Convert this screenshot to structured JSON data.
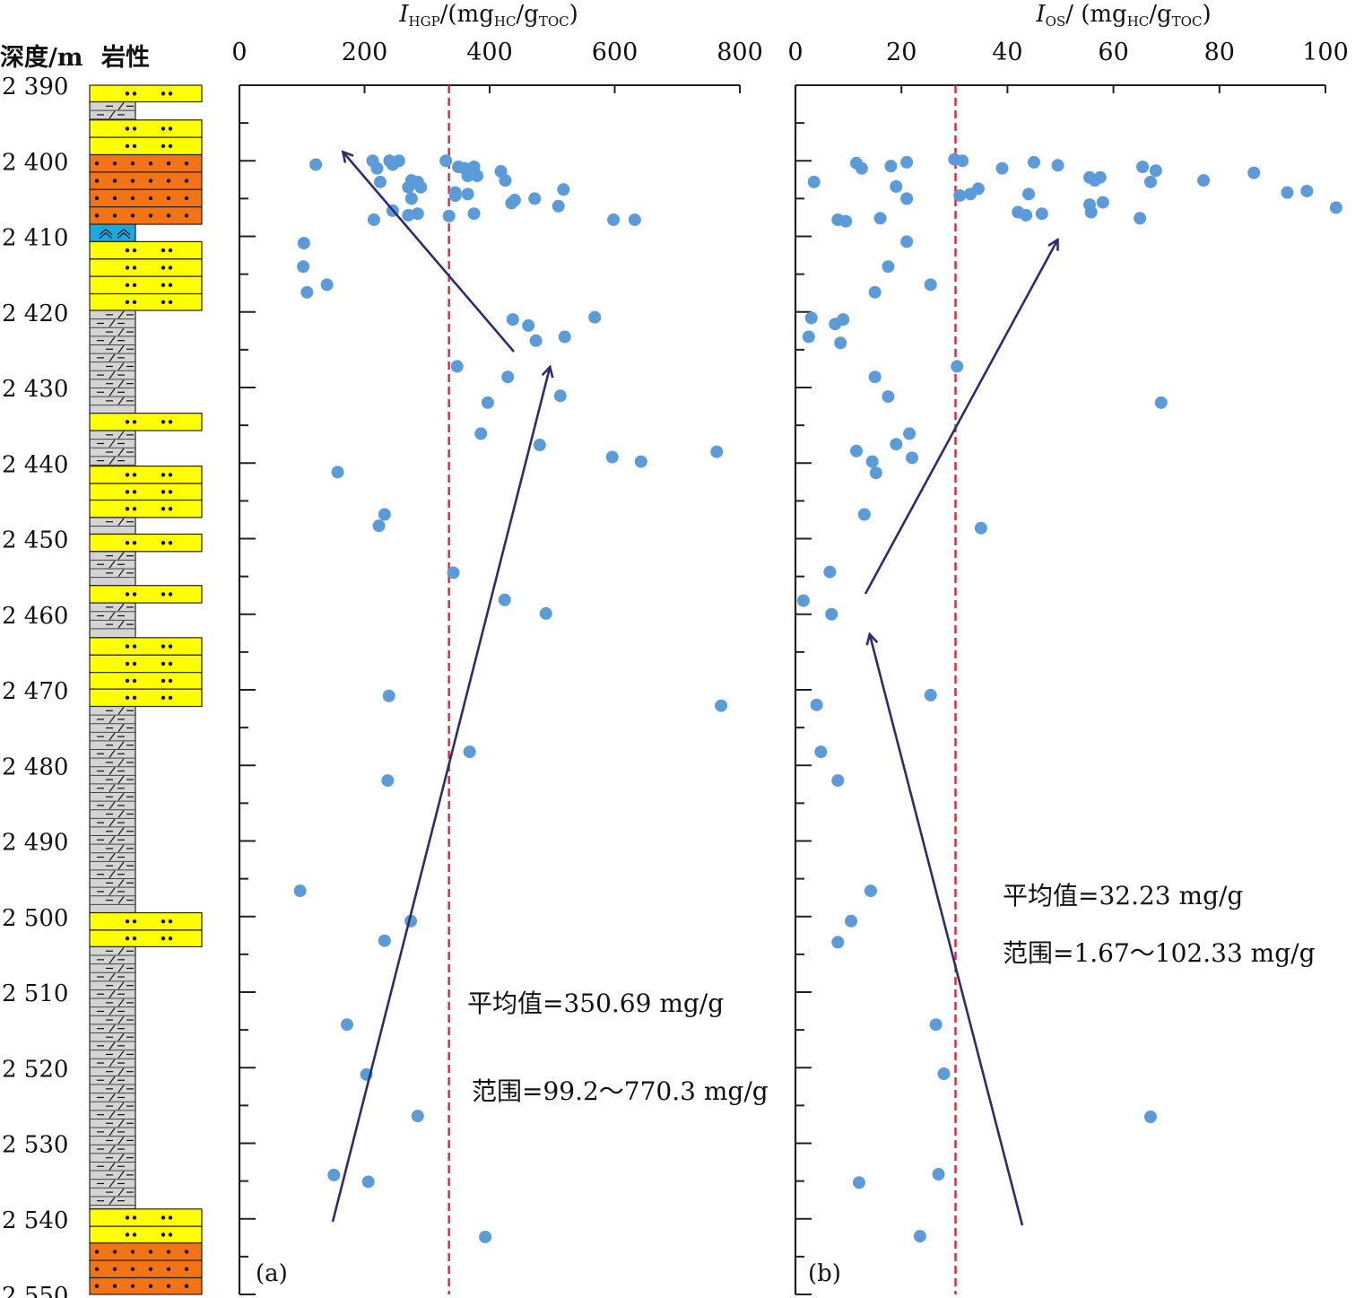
{
  "header": {
    "depth_label": "深度/m",
    "lithology_label": "岩性"
  },
  "colors": {
    "point": "#5b9bd9",
    "mean_line": "#e3223a",
    "arrow": "#2b2e6e",
    "sandstone": "#ffff00",
    "conglomerate": "#f47415",
    "mudstone": "#d4d4d4",
    "limestone": "#1ea8e0"
  },
  "lithology": [
    {
      "top": 2390,
      "bottom": 2392.2,
      "type": "sandstone"
    },
    {
      "top": 2392.2,
      "bottom": 2394.6,
      "type": "mudstone"
    },
    {
      "top": 2394.6,
      "bottom": 2396.9,
      "type": "sandstone"
    },
    {
      "top": 2396.9,
      "bottom": 2399.2,
      "type": "sandstone"
    },
    {
      "top": 2399.2,
      "bottom": 2401.5,
      "type": "conglomerate"
    },
    {
      "top": 2401.5,
      "bottom": 2403.8,
      "type": "conglomerate"
    },
    {
      "top": 2403.8,
      "bottom": 2406.1,
      "type": "conglomerate"
    },
    {
      "top": 2406.1,
      "bottom": 2408.4,
      "type": "conglomerate"
    },
    {
      "top": 2408.4,
      "bottom": 2410.7,
      "type": "limestone"
    },
    {
      "top": 2410.7,
      "bottom": 2413.0,
      "type": "sandstone"
    },
    {
      "top": 2413.0,
      "bottom": 2415.3,
      "type": "sandstone"
    },
    {
      "top": 2415.3,
      "bottom": 2417.6,
      "type": "sandstone"
    },
    {
      "top": 2417.6,
      "bottom": 2419.8,
      "type": "sandstone"
    },
    {
      "top": 2419.8,
      "bottom": 2433.4,
      "type": "mudstone"
    },
    {
      "top": 2433.4,
      "bottom": 2435.7,
      "type": "sandstone"
    },
    {
      "top": 2435.7,
      "bottom": 2440.4,
      "type": "mudstone"
    },
    {
      "top": 2440.4,
      "bottom": 2442.7,
      "type": "sandstone"
    },
    {
      "top": 2442.7,
      "bottom": 2444.9,
      "type": "sandstone"
    },
    {
      "top": 2444.9,
      "bottom": 2447.2,
      "type": "sandstone"
    },
    {
      "top": 2447.2,
      "bottom": 2449.4,
      "type": "mudstone"
    },
    {
      "top": 2449.4,
      "bottom": 2451.7,
      "type": "sandstone"
    },
    {
      "top": 2451.7,
      "bottom": 2456.2,
      "type": "mudstone"
    },
    {
      "top": 2456.2,
      "bottom": 2458.5,
      "type": "sandstone"
    },
    {
      "top": 2458.5,
      "bottom": 2463.1,
      "type": "mudstone"
    },
    {
      "top": 2463.1,
      "bottom": 2465.4,
      "type": "sandstone"
    },
    {
      "top": 2465.4,
      "bottom": 2467.7,
      "type": "sandstone"
    },
    {
      "top": 2467.7,
      "bottom": 2469.9,
      "type": "sandstone"
    },
    {
      "top": 2469.9,
      "bottom": 2472.2,
      "type": "sandstone"
    },
    {
      "top": 2472.2,
      "bottom": 2499.5,
      "type": "mudstone"
    },
    {
      "top": 2499.5,
      "bottom": 2501.8,
      "type": "sandstone"
    },
    {
      "top": 2501.8,
      "bottom": 2504.0,
      "type": "sandstone"
    },
    {
      "top": 2504.0,
      "bottom": 2538.7,
      "type": "mudstone"
    },
    {
      "top": 2538.7,
      "bottom": 2541.0,
      "type": "sandstone"
    },
    {
      "top": 2541.0,
      "bottom": 2543.2,
      "type": "sandstone"
    },
    {
      "top": 2543.2,
      "bottom": 2545.5,
      "type": "conglomerate"
    },
    {
      "top": 2545.5,
      "bottom": 2547.8,
      "type": "conglomerate"
    },
    {
      "top": 2547.8,
      "bottom": 2550,
      "type": "conglomerate"
    }
  ],
  "chart_data": [
    {
      "type": "scatter",
      "panel_label": "(a)",
      "xlabel": "I_HGP/(mg_HC/g_TOC)",
      "xlabel_parts": {
        "main": "I",
        "sub1": "HGP",
        "mid": "/(mg",
        "sub2": "HC",
        "mid2": "/g",
        "sub3": "TOC",
        "end": ")"
      },
      "xlim": [
        0,
        800
      ],
      "xticks": [
        0,
        200,
        400,
        600,
        800
      ],
      "ylim": [
        2390,
        2550
      ],
      "yticks": [
        2390,
        2400,
        2410,
        2420,
        2430,
        2440,
        2450,
        2460,
        2470,
        2480,
        2490,
        2500,
        2510,
        2520,
        2530,
        2540,
        2550
      ],
      "ytick_labels": [
        "2 390",
        "2 400",
        "2 410",
        "2 420",
        "2 430",
        "2 440",
        "2 450",
        "2 460",
        "2 470",
        "2 480",
        "2 490",
        "2 500",
        "2 510",
        "2 520",
        "2 530",
        "2 540",
        "2 550"
      ],
      "mean_line_x": 335,
      "annotations": [
        "平均值=350.69 mg/g",
        "范围=99.2～770.3 mg/g"
      ],
      "points": [
        [
          122,
          2400.5
        ],
        [
          213,
          2400
        ],
        [
          220,
          2401
        ],
        [
          240,
          2400
        ],
        [
          245,
          2400.5
        ],
        [
          255,
          2400
        ],
        [
          225,
          2402.8
        ],
        [
          270,
          2403.5
        ],
        [
          275,
          2402.6
        ],
        [
          285,
          2402.8
        ],
        [
          290,
          2403.5
        ],
        [
          275,
          2405
        ],
        [
          245,
          2406.6
        ],
        [
          285,
          2407
        ],
        [
          270,
          2407.2
        ],
        [
          335,
          2407.3
        ],
        [
          215,
          2407.8
        ],
        [
          330,
          2400
        ],
        [
          350,
          2400.8
        ],
        [
          360,
          2401
        ],
        [
          365,
          2402
        ],
        [
          375,
          2400.8
        ],
        [
          380,
          2402
        ],
        [
          345,
          2404.2
        ],
        [
          345,
          2404.6
        ],
        [
          365,
          2404.4
        ],
        [
          375,
          2407
        ],
        [
          418,
          2401.4
        ],
        [
          425,
          2402.6
        ],
        [
          440,
          2405.2
        ],
        [
          435,
          2405.6
        ],
        [
          472,
          2405
        ],
        [
          510,
          2406
        ],
        [
          518,
          2403.8
        ],
        [
          598,
          2407.8
        ],
        [
          632,
          2407.8
        ],
        [
          103,
          2410.9
        ],
        [
          102,
          2414
        ],
        [
          140,
          2416.4
        ],
        [
          108,
          2417.4
        ],
        [
          437,
          2421
        ],
        [
          462,
          2421.8
        ],
        [
          568,
          2420.7
        ],
        [
          474,
          2423.8
        ],
        [
          520,
          2423.3
        ],
        [
          348,
          2427.2
        ],
        [
          429,
          2428.6
        ],
        [
          513,
          2431.1
        ],
        [
          397,
          2432
        ],
        [
          386,
          2436.1
        ],
        [
          480,
          2437.6
        ],
        [
          596,
          2439.2
        ],
        [
          642,
          2439.8
        ],
        [
          763,
          2438.5
        ],
        [
          157,
          2441.2
        ],
        [
          232,
          2446.8
        ],
        [
          223,
          2448.3
        ],
        [
          342,
          2454.5
        ],
        [
          424,
          2458.1
        ],
        [
          490,
          2459.9
        ],
        [
          239,
          2470.8
        ],
        [
          770,
          2472.1
        ],
        [
          368,
          2478.2
        ],
        [
          237,
          2482
        ],
        [
          97,
          2496.6
        ],
        [
          274,
          2500.6
        ],
        [
          232,
          2503.2
        ],
        [
          172,
          2514.3
        ],
        [
          203,
          2520.9
        ],
        [
          285,
          2526.4
        ],
        [
          151,
          2534.2
        ],
        [
          206,
          2535.1
        ],
        [
          393,
          2542.4
        ]
      ]
    },
    {
      "type": "scatter",
      "panel_label": "(b)",
      "xlabel": "I_OS/ (mg_HC/g_TOC)",
      "xlabel_parts": {
        "main": "I",
        "sub1": "OS",
        "mid": "/ (mg",
        "sub2": "HC",
        "mid2": "/g",
        "sub3": "TOC",
        "end": ")"
      },
      "xlim": [
        0,
        100
      ],
      "xticks": [
        0,
        20,
        40,
        60,
        80,
        100
      ],
      "ylim": [
        2390,
        2550
      ],
      "mean_line_x": 30.2,
      "annotations": [
        "平均值=32.23 mg/g",
        "范围=1.67～102.33 mg/g"
      ],
      "points": [
        [
          11.5,
          2400.3
        ],
        [
          12.5,
          2401
        ],
        [
          18,
          2400.7
        ],
        [
          21,
          2400.2
        ],
        [
          30,
          2399.8
        ],
        [
          31.5,
          2400
        ],
        [
          39,
          2401
        ],
        [
          45,
          2400.2
        ],
        [
          49.5,
          2400.6
        ],
        [
          55.5,
          2402.2
        ],
        [
          56.5,
          2402.6
        ],
        [
          57.5,
          2402.2
        ],
        [
          65.5,
          2400.8
        ],
        [
          68,
          2401.3
        ],
        [
          67,
          2402.8
        ],
        [
          77,
          2402.6
        ],
        [
          86.5,
          2401.6
        ],
        [
          3.5,
          2402.8
        ],
        [
          19,
          2403.4
        ],
        [
          21,
          2405
        ],
        [
          31,
          2404.6
        ],
        [
          33,
          2404.4
        ],
        [
          34.5,
          2403.7
        ],
        [
          44,
          2404.4
        ],
        [
          55.5,
          2405.8
        ],
        [
          58,
          2405.5
        ],
        [
          92.8,
          2404.2
        ],
        [
          96.5,
          2404
        ],
        [
          102,
          2406.2
        ],
        [
          8,
          2407.8
        ],
        [
          9.5,
          2408
        ],
        [
          16,
          2407.6
        ],
        [
          42,
          2406.8
        ],
        [
          43.5,
          2407.2
        ],
        [
          46.5,
          2407
        ],
        [
          55.8,
          2406.8
        ],
        [
          65,
          2407.6
        ],
        [
          21,
          2410.7
        ],
        [
          17.5,
          2414
        ],
        [
          15,
          2417.4
        ],
        [
          25.5,
          2416.4
        ],
        [
          3,
          2420.8
        ],
        [
          7.5,
          2421.6
        ],
        [
          9,
          2421
        ],
        [
          2.5,
          2423.3
        ],
        [
          8.5,
          2424.1
        ],
        [
          30.5,
          2427.2
        ],
        [
          15,
          2428.6
        ],
        [
          17.5,
          2431.2
        ],
        [
          69,
          2432
        ],
        [
          21.5,
          2436.1
        ],
        [
          11.5,
          2438.4
        ],
        [
          19,
          2437.5
        ],
        [
          14.5,
          2439.8
        ],
        [
          22,
          2439.3
        ],
        [
          15.2,
          2441.3
        ],
        [
          13,
          2446.8
        ],
        [
          35,
          2448.6
        ],
        [
          6.5,
          2454.4
        ],
        [
          1.5,
          2458.2
        ],
        [
          6.8,
          2460
        ],
        [
          25.5,
          2470.7
        ],
        [
          4,
          2472
        ],
        [
          4.8,
          2478.2
        ],
        [
          8,
          2482
        ],
        [
          14.2,
          2496.6
        ],
        [
          10.5,
          2500.6
        ],
        [
          8,
          2503.4
        ],
        [
          26.5,
          2514.3
        ],
        [
          28,
          2520.8
        ],
        [
          67,
          2526.5
        ],
        [
          27,
          2534.1
        ],
        [
          12,
          2535.2
        ],
        [
          23.5,
          2542.3
        ]
      ]
    }
  ]
}
